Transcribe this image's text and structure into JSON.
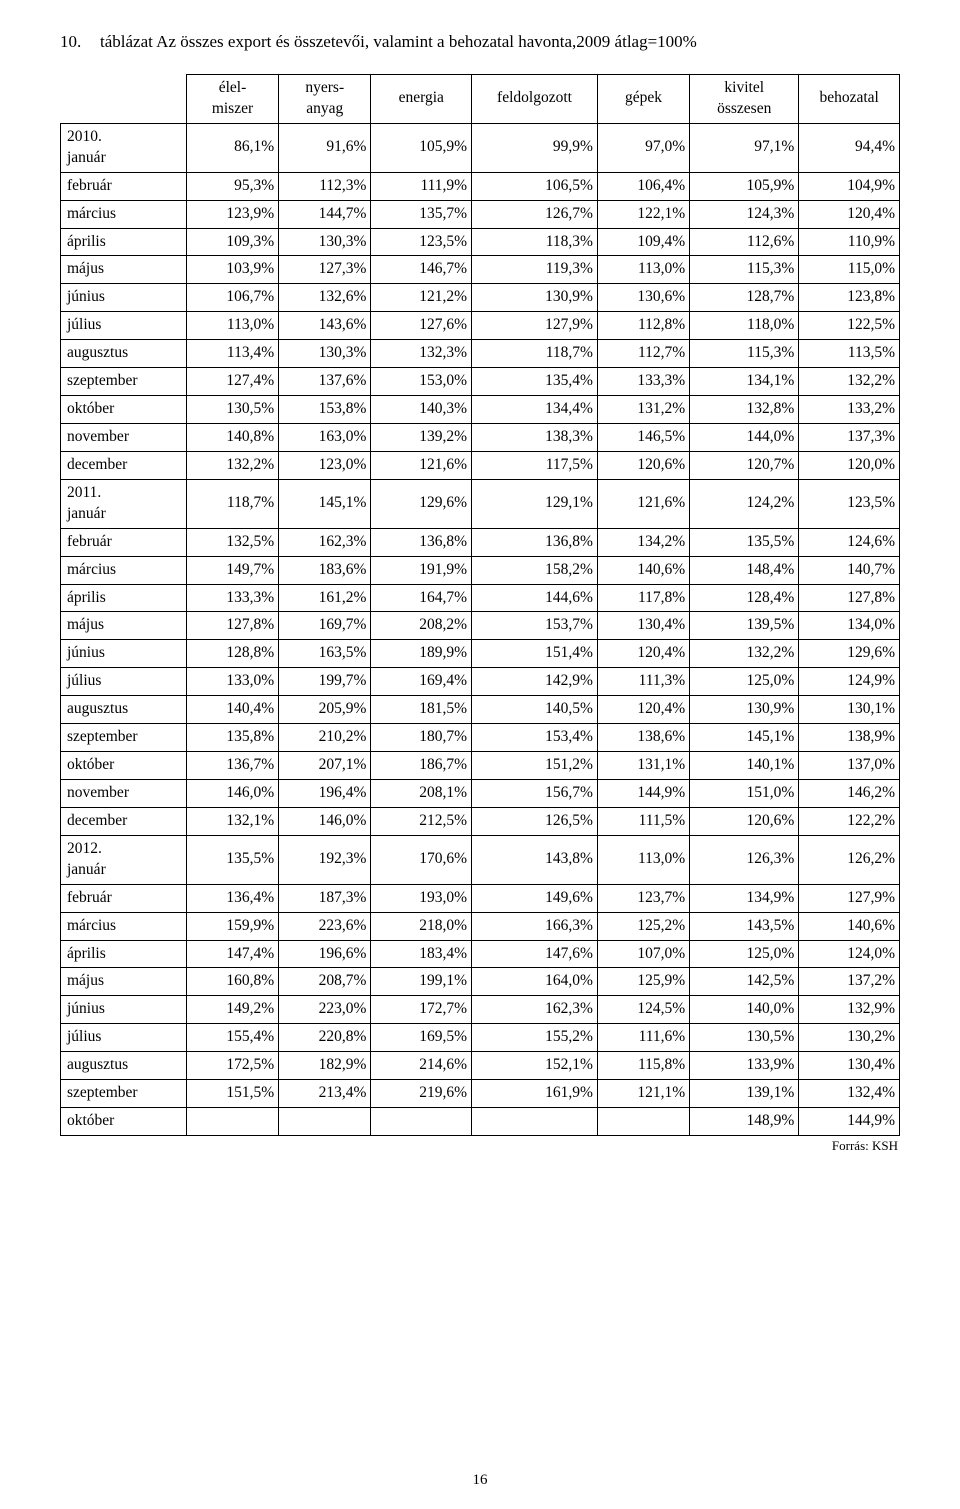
{
  "title_number": "10.",
  "title_text": "táblázat Az összes export és összetevői, valamint a behozatal havonta,2009 átlag=100%",
  "columns": [
    "",
    "élel-\nmiszer",
    "nyers-\nanyag",
    "energia",
    "feldolgozott",
    "gépek",
    "kivitel\nösszesen",
    "behozatal"
  ],
  "col_classes": [
    "col0",
    "col1",
    "col2",
    "col3",
    "col4",
    "col5",
    "col6",
    "col7"
  ],
  "rows": [
    {
      "label": "2010. január",
      "cells": [
        "86,1%",
        "91,6%",
        "105,9%",
        "99,9%",
        "97,0%",
        "97,1%",
        "94,4%"
      ]
    },
    {
      "label": "február",
      "cells": [
        "95,3%",
        "112,3%",
        "111,9%",
        "106,5%",
        "106,4%",
        "105,9%",
        "104,9%"
      ]
    },
    {
      "label": "március",
      "cells": [
        "123,9%",
        "144,7%",
        "135,7%",
        "126,7%",
        "122,1%",
        "124,3%",
        "120,4%"
      ]
    },
    {
      "label": "április",
      "cells": [
        "109,3%",
        "130,3%",
        "123,5%",
        "118,3%",
        "109,4%",
        "112,6%",
        "110,9%"
      ]
    },
    {
      "label": "május",
      "cells": [
        "103,9%",
        "127,3%",
        "146,7%",
        "119,3%",
        "113,0%",
        "115,3%",
        "115,0%"
      ]
    },
    {
      "label": "június",
      "cells": [
        "106,7%",
        "132,6%",
        "121,2%",
        "130,9%",
        "130,6%",
        "128,7%",
        "123,8%"
      ]
    },
    {
      "label": "július",
      "cells": [
        "113,0%",
        "143,6%",
        "127,6%",
        "127,9%",
        "112,8%",
        "118,0%",
        "122,5%"
      ]
    },
    {
      "label": "augusztus",
      "cells": [
        "113,4%",
        "130,3%",
        "132,3%",
        "118,7%",
        "112,7%",
        "115,3%",
        "113,5%"
      ]
    },
    {
      "label": "szeptember",
      "cells": [
        "127,4%",
        "137,6%",
        "153,0%",
        "135,4%",
        "133,3%",
        "134,1%",
        "132,2%"
      ]
    },
    {
      "label": "október",
      "cells": [
        "130,5%",
        "153,8%",
        "140,3%",
        "134,4%",
        "131,2%",
        "132,8%",
        "133,2%"
      ]
    },
    {
      "label": "november",
      "cells": [
        "140,8%",
        "163,0%",
        "139,2%",
        "138,3%",
        "146,5%",
        "144,0%",
        "137,3%"
      ]
    },
    {
      "label": "december",
      "cells": [
        "132,2%",
        "123,0%",
        "121,6%",
        "117,5%",
        "120,6%",
        "120,7%",
        "120,0%"
      ]
    },
    {
      "label": "2011. január",
      "cells": [
        "118,7%",
        "145,1%",
        "129,6%",
        "129,1%",
        "121,6%",
        "124,2%",
        "123,5%"
      ]
    },
    {
      "label": "február",
      "cells": [
        "132,5%",
        "162,3%",
        "136,8%",
        "136,8%",
        "134,2%",
        "135,5%",
        "124,6%"
      ]
    },
    {
      "label": "március",
      "cells": [
        "149,7%",
        "183,6%",
        "191,9%",
        "158,2%",
        "140,6%",
        "148,4%",
        "140,7%"
      ]
    },
    {
      "label": "április",
      "cells": [
        "133,3%",
        "161,2%",
        "164,7%",
        "144,6%",
        "117,8%",
        "128,4%",
        "127,8%"
      ]
    },
    {
      "label": "május",
      "cells": [
        "127,8%",
        "169,7%",
        "208,2%",
        "153,7%",
        "130,4%",
        "139,5%",
        "134,0%"
      ]
    },
    {
      "label": "június",
      "cells": [
        "128,8%",
        "163,5%",
        "189,9%",
        "151,4%",
        "120,4%",
        "132,2%",
        "129,6%"
      ]
    },
    {
      "label": "július",
      "cells": [
        "133,0%",
        "199,7%",
        "169,4%",
        "142,9%",
        "111,3%",
        "125,0%",
        "124,9%"
      ]
    },
    {
      "label": "augusztus",
      "cells": [
        "140,4%",
        "205,9%",
        "181,5%",
        "140,5%",
        "120,4%",
        "130,9%",
        "130,1%"
      ]
    },
    {
      "label": "szeptember",
      "cells": [
        "135,8%",
        "210,2%",
        "180,7%",
        "153,4%",
        "138,6%",
        "145,1%",
        "138,9%"
      ]
    },
    {
      "label": "október",
      "cells": [
        "136,7%",
        "207,1%",
        "186,7%",
        "151,2%",
        "131,1%",
        "140,1%",
        "137,0%"
      ]
    },
    {
      "label": "november",
      "cells": [
        "146,0%",
        "196,4%",
        "208,1%",
        "156,7%",
        "144,9%",
        "151,0%",
        "146,2%"
      ]
    },
    {
      "label": "december",
      "cells": [
        "132,1%",
        "146,0%",
        "212,5%",
        "126,5%",
        "111,5%",
        "120,6%",
        "122,2%"
      ]
    },
    {
      "label": "2012. január",
      "cells": [
        "135,5%",
        "192,3%",
        "170,6%",
        "143,8%",
        "113,0%",
        "126,3%",
        "126,2%"
      ]
    },
    {
      "label": "február",
      "cells": [
        "136,4%",
        "187,3%",
        "193,0%",
        "149,6%",
        "123,7%",
        "134,9%",
        "127,9%"
      ]
    },
    {
      "label": "március",
      "cells": [
        "159,9%",
        "223,6%",
        "218,0%",
        "166,3%",
        "125,2%",
        "143,5%",
        "140,6%"
      ]
    },
    {
      "label": "április",
      "cells": [
        "147,4%",
        "196,6%",
        "183,4%",
        "147,6%",
        "107,0%",
        "125,0%",
        "124,0%"
      ]
    },
    {
      "label": "május",
      "cells": [
        "160,8%",
        "208,7%",
        "199,1%",
        "164,0%",
        "125,9%",
        "142,5%",
        "137,2%"
      ]
    },
    {
      "label": "június",
      "cells": [
        "149,2%",
        "223,0%",
        "172,7%",
        "162,3%",
        "124,5%",
        "140,0%",
        "132,9%"
      ]
    },
    {
      "label": "július",
      "cells": [
        "155,4%",
        "220,8%",
        "169,5%",
        "155,2%",
        "111,6%",
        "130,5%",
        "130,2%"
      ]
    },
    {
      "label": "augusztus",
      "cells": [
        "172,5%",
        "182,9%",
        "214,6%",
        "152,1%",
        "115,8%",
        "133,9%",
        "130,4%"
      ]
    },
    {
      "label": "szeptember",
      "cells": [
        "151,5%",
        "213,4%",
        "219,6%",
        "161,9%",
        "121,1%",
        "139,1%",
        "132,4%"
      ]
    },
    {
      "label": "október",
      "cells": [
        "",
        "",
        "",
        "",
        "",
        "148,9%",
        "144,9%"
      ]
    }
  ],
  "source_text": "Forrás: KSH",
  "page_number": "16",
  "colors": {
    "text": "#000000",
    "background": "#ffffff",
    "border": "#000000"
  }
}
